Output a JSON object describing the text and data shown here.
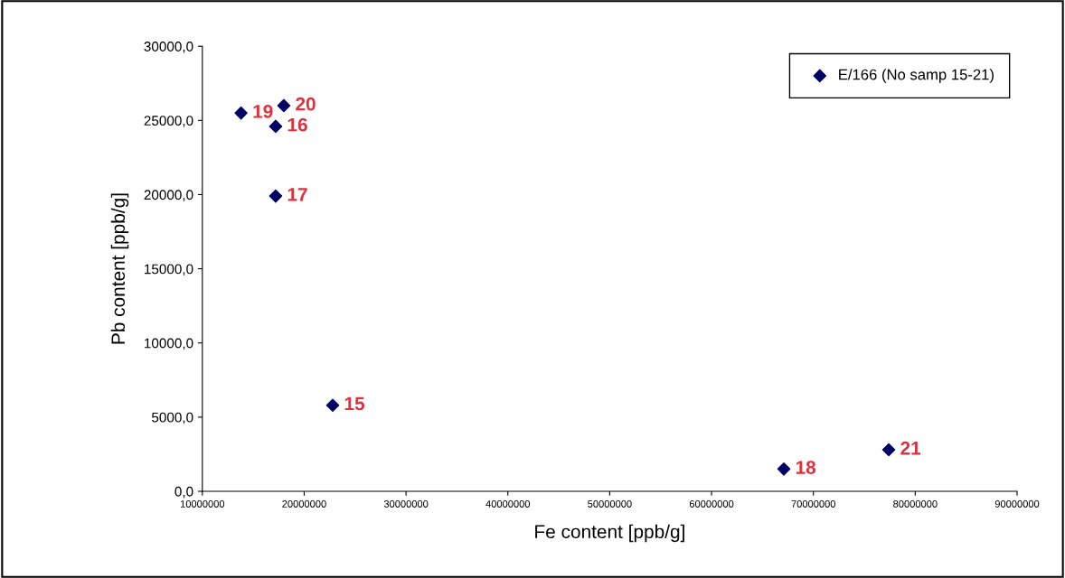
{
  "chart_data": {
    "type": "scatter",
    "xlabel": "Fe content [ppb/g]",
    "ylabel": "Pb content [ppb/g]",
    "x": [
      22800000,
      17200000,
      17200000,
      67100000,
      13800000,
      18000000,
      77400000
    ],
    "series": [
      {
        "name": "E/166 (No samp 15-21)",
        "color": "#000066",
        "values": [
          5800,
          24600,
          19900,
          1500,
          25500,
          26000,
          2800
        ]
      }
    ],
    "annotations": [
      {
        "text": "15",
        "x": 22800000,
        "y": 5800
      },
      {
        "text": "16",
        "x": 17200000,
        "y": 24600
      },
      {
        "text": "17",
        "x": 17200000,
        "y": 19900
      },
      {
        "text": "18",
        "x": 67100000,
        "y": 1500
      },
      {
        "text": "19",
        "x": 13800000,
        "y": 25500
      },
      {
        "text": "20",
        "x": 18000000,
        "y": 26000
      },
      {
        "text": "21",
        "x": 77400000,
        "y": 2800
      }
    ],
    "xlim": [
      10000000,
      90000000
    ],
    "xticks": [
      10000000,
      20000000,
      30000000,
      40000000,
      50000000,
      60000000,
      70000000,
      80000000,
      90000000
    ],
    "ylim": [
      0,
      30000
    ],
    "yticks": [
      {
        "value": 0,
        "label": "0,0"
      },
      {
        "value": 5000,
        "label": "5000,0"
      },
      {
        "value": 10000,
        "label": "10000,0"
      },
      {
        "value": 15000,
        "label": "15000,0"
      },
      {
        "value": 20000,
        "label": "20000,0"
      },
      {
        "value": 25000,
        "label": "25000,0"
      },
      {
        "value": 30000,
        "label": "30000,0"
      }
    ],
    "marker": "diamond",
    "grid": false,
    "legend": "top right"
  }
}
